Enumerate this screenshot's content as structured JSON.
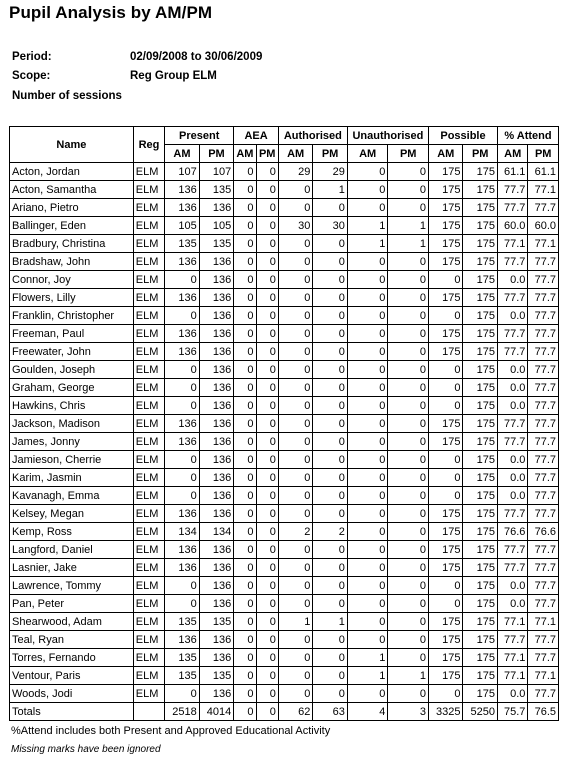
{
  "title": "Pupil Analysis by AM/PM",
  "meta": {
    "period_label": "Period:",
    "period_value": "02/09/2008 to 30/06/2009",
    "scope_label": "Scope:",
    "scope_value": "Reg Group ELM",
    "sessions_label": "Number of sessions"
  },
  "headers": {
    "name": "Name",
    "reg": "Reg",
    "present": "Present",
    "aea": "AEA",
    "authorised": "Authorised",
    "unauthorised": "Unauthorised",
    "possible": "Possible",
    "attend": "% Attend",
    "am": "AM",
    "pm": "PM"
  },
  "rows": [
    [
      "Acton, Jordan",
      "ELM",
      "107",
      "107",
      "0",
      "0",
      "29",
      "29",
      "0",
      "0",
      "175",
      "175",
      "61.1",
      "61.1"
    ],
    [
      "Acton, Samantha",
      "ELM",
      "136",
      "135",
      "0",
      "0",
      "0",
      "1",
      "0",
      "0",
      "175",
      "175",
      "77.7",
      "77.1"
    ],
    [
      "Ariano, Pietro",
      "ELM",
      "136",
      "136",
      "0",
      "0",
      "0",
      "0",
      "0",
      "0",
      "175",
      "175",
      "77.7",
      "77.7"
    ],
    [
      "Ballinger, Eden",
      "ELM",
      "105",
      "105",
      "0",
      "0",
      "30",
      "30",
      "1",
      "1",
      "175",
      "175",
      "60.0",
      "60.0"
    ],
    [
      "Bradbury, Christina",
      "ELM",
      "135",
      "135",
      "0",
      "0",
      "0",
      "0",
      "1",
      "1",
      "175",
      "175",
      "77.1",
      "77.1"
    ],
    [
      "Bradshaw, John",
      "ELM",
      "136",
      "136",
      "0",
      "0",
      "0",
      "0",
      "0",
      "0",
      "175",
      "175",
      "77.7",
      "77.7"
    ],
    [
      "Connor, Joy",
      "ELM",
      "0",
      "136",
      "0",
      "0",
      "0",
      "0",
      "0",
      "0",
      "0",
      "175",
      "0.0",
      "77.7"
    ],
    [
      "Flowers, Lilly",
      "ELM",
      "136",
      "136",
      "0",
      "0",
      "0",
      "0",
      "0",
      "0",
      "175",
      "175",
      "77.7",
      "77.7"
    ],
    [
      "Franklin, Christopher",
      "ELM",
      "0",
      "136",
      "0",
      "0",
      "0",
      "0",
      "0",
      "0",
      "0",
      "175",
      "0.0",
      "77.7"
    ],
    [
      "Freeman, Paul",
      "ELM",
      "136",
      "136",
      "0",
      "0",
      "0",
      "0",
      "0",
      "0",
      "175",
      "175",
      "77.7",
      "77.7"
    ],
    [
      "Freewater, John",
      "ELM",
      "136",
      "136",
      "0",
      "0",
      "0",
      "0",
      "0",
      "0",
      "175",
      "175",
      "77.7",
      "77.7"
    ],
    [
      "Goulden, Joseph",
      "ELM",
      "0",
      "136",
      "0",
      "0",
      "0",
      "0",
      "0",
      "0",
      "0",
      "175",
      "0.0",
      "77.7"
    ],
    [
      "Graham, George",
      "ELM",
      "0",
      "136",
      "0",
      "0",
      "0",
      "0",
      "0",
      "0",
      "0",
      "175",
      "0.0",
      "77.7"
    ],
    [
      "Hawkins, Chris",
      "ELM",
      "0",
      "136",
      "0",
      "0",
      "0",
      "0",
      "0",
      "0",
      "0",
      "175",
      "0.0",
      "77.7"
    ],
    [
      "Jackson, Madison",
      "ELM",
      "136",
      "136",
      "0",
      "0",
      "0",
      "0",
      "0",
      "0",
      "175",
      "175",
      "77.7",
      "77.7"
    ],
    [
      "James, Jonny",
      "ELM",
      "136",
      "136",
      "0",
      "0",
      "0",
      "0",
      "0",
      "0",
      "175",
      "175",
      "77.7",
      "77.7"
    ],
    [
      "Jamieson, Cherrie",
      "ELM",
      "0",
      "136",
      "0",
      "0",
      "0",
      "0",
      "0",
      "0",
      "0",
      "175",
      "0.0",
      "77.7"
    ],
    [
      "Karim, Jasmin",
      "ELM",
      "0",
      "136",
      "0",
      "0",
      "0",
      "0",
      "0",
      "0",
      "0",
      "175",
      "0.0",
      "77.7"
    ],
    [
      "Kavanagh, Emma",
      "ELM",
      "0",
      "136",
      "0",
      "0",
      "0",
      "0",
      "0",
      "0",
      "0",
      "175",
      "0.0",
      "77.7"
    ],
    [
      "Kelsey, Megan",
      "ELM",
      "136",
      "136",
      "0",
      "0",
      "0",
      "0",
      "0",
      "0",
      "175",
      "175",
      "77.7",
      "77.7"
    ],
    [
      "Kemp, Ross",
      "ELM",
      "134",
      "134",
      "0",
      "0",
      "2",
      "2",
      "0",
      "0",
      "175",
      "175",
      "76.6",
      "76.6"
    ],
    [
      "Langford, Daniel",
      "ELM",
      "136",
      "136",
      "0",
      "0",
      "0",
      "0",
      "0",
      "0",
      "175",
      "175",
      "77.7",
      "77.7"
    ],
    [
      "Lasnier, Jake",
      "ELM",
      "136",
      "136",
      "0",
      "0",
      "0",
      "0",
      "0",
      "0",
      "175",
      "175",
      "77.7",
      "77.7"
    ],
    [
      "Lawrence, Tommy",
      "ELM",
      "0",
      "136",
      "0",
      "0",
      "0",
      "0",
      "0",
      "0",
      "0",
      "175",
      "0.0",
      "77.7"
    ],
    [
      "Pan, Peter",
      "ELM",
      "0",
      "136",
      "0",
      "0",
      "0",
      "0",
      "0",
      "0",
      "0",
      "175",
      "0.0",
      "77.7"
    ],
    [
      "Shearwood, Adam",
      "ELM",
      "135",
      "135",
      "0",
      "0",
      "1",
      "1",
      "0",
      "0",
      "175",
      "175",
      "77.1",
      "77.1"
    ],
    [
      "Teal, Ryan",
      "ELM",
      "136",
      "136",
      "0",
      "0",
      "0",
      "0",
      "0",
      "0",
      "175",
      "175",
      "77.7",
      "77.7"
    ],
    [
      "Torres, Fernando",
      "ELM",
      "135",
      "136",
      "0",
      "0",
      "0",
      "0",
      "1",
      "0",
      "175",
      "175",
      "77.1",
      "77.7"
    ],
    [
      "Ventour, Paris",
      "ELM",
      "135",
      "135",
      "0",
      "0",
      "0",
      "0",
      "1",
      "1",
      "175",
      "175",
      "77.1",
      "77.1"
    ],
    [
      "Woods, Jodi",
      "ELM",
      "0",
      "136",
      "0",
      "0",
      "0",
      "0",
      "0",
      "0",
      "0",
      "175",
      "0.0",
      "77.7"
    ]
  ],
  "totals": [
    "Totals",
    "",
    "2518",
    "4014",
    "0",
    "0",
    "62",
    "63",
    "4",
    "3",
    "3325",
    "5250",
    "75.7",
    "76.5"
  ],
  "footer": {
    "note1": "%Attend includes both Present and Approved Educational Activity",
    "note2": "Missing marks have been ignored"
  }
}
